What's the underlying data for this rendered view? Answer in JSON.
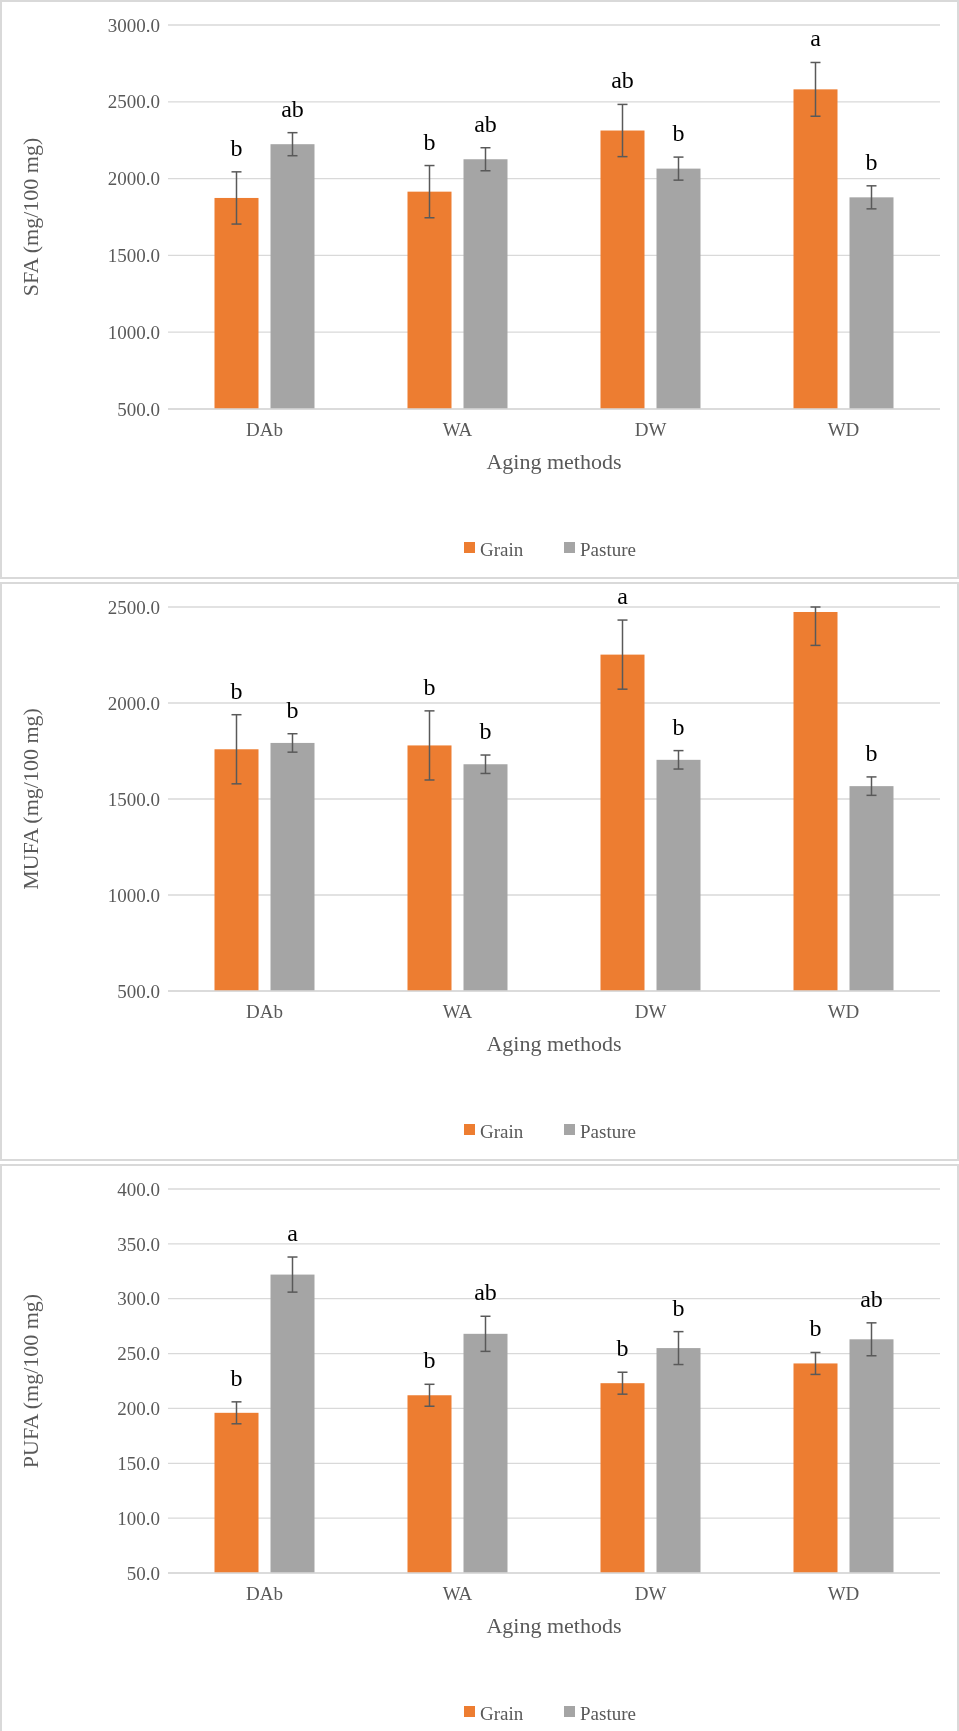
{
  "chart_data": [
    {
      "type": "bar",
      "categories": [
        "DAb",
        "WA",
        "DW",
        "WD"
      ],
      "xlabel": "Aging methods",
      "ylabel": "SFA (mg/100 mg)",
      "ylim": [
        500,
        3000
      ],
      "yticks": [
        {
          "value": 500,
          "label": "500.0"
        },
        {
          "value": 1000,
          "label": "1000.0"
        },
        {
          "value": 1500,
          "label": "1500.0"
        },
        {
          "value": 2000,
          "label": "2000.0"
        },
        {
          "value": 2500,
          "label": "2500.0"
        },
        {
          "value": 3000,
          "label": "3000.0"
        }
      ],
      "grid": "y",
      "legend": "bottom",
      "series": [
        {
          "name": "Grain",
          "color": "#ed7d31",
          "values": [
            1874,
            1915,
            2313,
            2581
          ],
          "errors": [
            170,
            170,
            170,
            175
          ],
          "value_labels": [
            "b",
            "b",
            "ab",
            "a"
          ]
        },
        {
          "name": "Pasture",
          "color": "#a5a5a5",
          "values": [
            2224,
            2126,
            2065,
            1878
          ],
          "errors": [
            75,
            75,
            75,
            75
          ],
          "value_labels": [
            "ab",
            "ab",
            "b",
            "b"
          ]
        }
      ]
    },
    {
      "type": "bar",
      "categories": [
        "DAb",
        "WA",
        "DW",
        "WD"
      ],
      "xlabel": "Aging methods",
      "ylabel": "MUFA (mg/100 mg)",
      "ylim": [
        500,
        2500
      ],
      "yticks": [
        {
          "value": 500,
          "label": "500.0"
        },
        {
          "value": 1000,
          "label": "1000.0"
        },
        {
          "value": 1500,
          "label": "1500.0"
        },
        {
          "value": 2000,
          "label": "2000.0"
        },
        {
          "value": 2500,
          "label": "2500.0"
        }
      ],
      "grid": "y",
      "legend": "bottom",
      "series": [
        {
          "name": "Grain",
          "color": "#ed7d31",
          "values": [
            1759,
            1779,
            2252,
            2474
          ],
          "errors": [
            180,
            180,
            180,
            [
              2300,
              2500
            ]
          ],
          "value_labels": [
            "b",
            "b",
            "a",
            null
          ]
        },
        {
          "name": "Pasture",
          "color": "#a5a5a5",
          "values": [
            1792,
            1681,
            1704,
            1567
          ],
          "errors": [
            48,
            48,
            48,
            48
          ],
          "value_labels": [
            "b",
            "b",
            "b",
            "b"
          ]
        }
      ]
    },
    {
      "type": "bar",
      "categories": [
        "DAb",
        "WA",
        "DW",
        "WD"
      ],
      "xlabel": "Aging methods",
      "ylabel": "PUFA (mg/100 mg)",
      "ylim": [
        50,
        400
      ],
      "yticks": [
        {
          "value": 50,
          "label": "50.0"
        },
        {
          "value": 100,
          "label": "100.0"
        },
        {
          "value": 150,
          "label": "150.0"
        },
        {
          "value": 200,
          "label": "200.0"
        },
        {
          "value": 250,
          "label": "250.0"
        },
        {
          "value": 300,
          "label": "300.0"
        },
        {
          "value": 350,
          "label": "350.0"
        },
        {
          "value": 400,
          "label": "400.0"
        }
      ],
      "grid": "y",
      "legend": "bottom",
      "series": [
        {
          "name": "Grain",
          "color": "#ed7d31",
          "values": [
            196,
            212,
            223,
            241
          ],
          "errors": [
            10,
            10,
            10,
            10
          ],
          "value_labels": [
            "b",
            "b",
            "b",
            "b"
          ]
        },
        {
          "name": "Pasture",
          "color": "#a5a5a5",
          "values": [
            322,
            268,
            255,
            263
          ],
          "errors": [
            16,
            16,
            15,
            15
          ],
          "value_labels": [
            "a",
            "ab",
            "b",
            "ab"
          ]
        }
      ]
    }
  ]
}
